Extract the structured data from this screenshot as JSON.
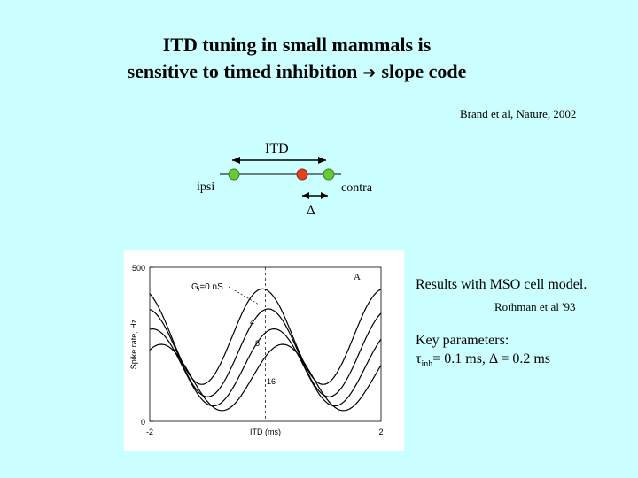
{
  "slide": {
    "title_line1": "ITD tuning in small mammals is",
    "title_line2": "sensitive to timed inhibition",
    "title_arrow_icon": "arrow-right-icon",
    "title_line2_suffix": "slope code",
    "citation": "Brand et al, Nature, 2002",
    "result_text": "Results with MSO cell model.",
    "result_citation": "Rothman et al '93",
    "key_params_title": "Key parameters:",
    "key_params_tau": "τ",
    "key_params_tau_sub": "inh",
    "key_params_rest": "= 0.1 ms, Δ = 0.2 ms",
    "background_color": "#ccffff"
  },
  "diagram": {
    "itd_label": "ITD",
    "ipsi_label": "ipsi",
    "contra_label": "contra",
    "delta_label": "Δ",
    "excitatory_color": "#66cc33",
    "inhibitory_color": "#e8401c"
  },
  "chart_data": {
    "type": "line",
    "title": "",
    "panel_label": "A",
    "xlabel": "ITD (ms)",
    "ylabel": "Spike rate, Hz",
    "xlim": [
      -2,
      2
    ],
    "ylim": [
      0,
      500
    ],
    "x_ticks": [
      "-2",
      "2"
    ],
    "y_ticks": [
      "0",
      "500"
    ],
    "grid": false,
    "annotation_g0": "G",
    "annotation_g0_sub": "i",
    "annotation_g0_rest": "=0 nS",
    "series": [
      {
        "name": "0",
        "label": "",
        "peak": 430,
        "trough": 120,
        "peak_x": -0.05
      },
      {
        "name": "4",
        "label": "4",
        "peak": 365,
        "trough": 80,
        "peak_x": 0.05
      },
      {
        "name": "8",
        "label": "8",
        "peak": 300,
        "trough": 50,
        "peak_x": 0.15
      },
      {
        "name": "16",
        "label": "16",
        "peak": 250,
        "trough": 35,
        "peak_x": 0.3
      }
    ],
    "dashed_line_x": 0,
    "period_ms": 2.1
  }
}
